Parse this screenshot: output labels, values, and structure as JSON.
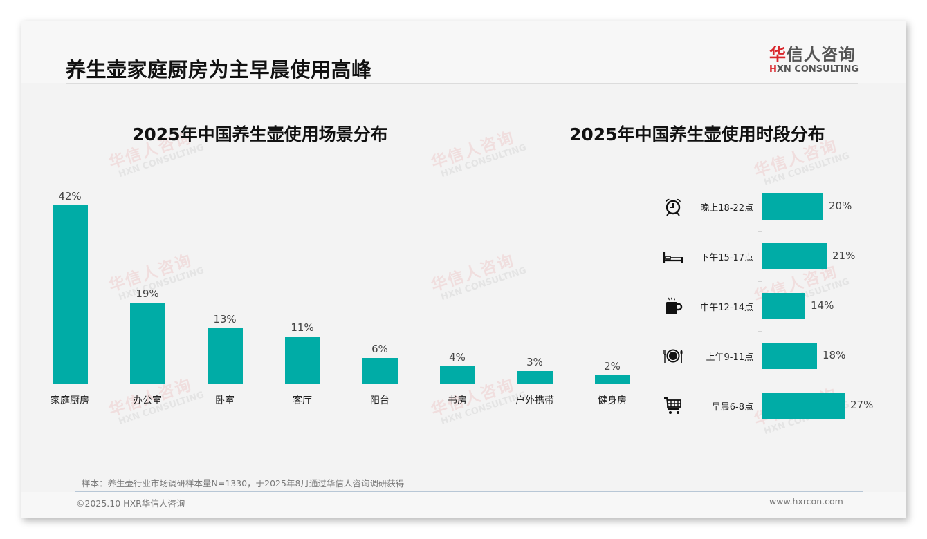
{
  "header": {
    "title": "养生壶家庭厨房为主早晨使用高峰",
    "logo_cn_red": "华",
    "logo_cn_rest": "信人咨询",
    "logo_en_red": "H",
    "logo_en_rest": "XN CONSULTING"
  },
  "watermark": {
    "cn": "华信人咨询",
    "en": "HXN CONSULTING"
  },
  "colors": {
    "bar": "#00aca6",
    "brand_red": "#d9262c",
    "background": "#f3f3f3"
  },
  "chart_data": [
    {
      "type": "bar",
      "title": "2025年中国养生壶使用场景分布",
      "categories": [
        "家庭厨房",
        "办公室",
        "卧室",
        "客厅",
        "阳台",
        "书房",
        "户外携带",
        "健身房"
      ],
      "values": [
        42,
        19,
        13,
        11,
        6,
        4,
        3,
        2
      ],
      "value_labels": [
        "42%",
        "19%",
        "13%",
        "11%",
        "6%",
        "4%",
        "3%",
        "2%"
      ],
      "unit": "%",
      "xlabel": "",
      "ylabel": "",
      "ylim": [
        0,
        42
      ],
      "grid": false,
      "legend": null,
      "orientation": "vertical"
    },
    {
      "type": "bar",
      "title": "2025年中国养生壶使用时段分布",
      "categories": [
        "晚上18-22点",
        "下午15-17点",
        "中午12-14点",
        "上午9-11点",
        "早晨6-8点"
      ],
      "values": [
        20,
        21,
        14,
        18,
        27
      ],
      "value_labels": [
        "20%",
        "21%",
        "14%",
        "18%",
        "27%"
      ],
      "icons": [
        "alarm-clock-icon",
        "bed-icon",
        "coffee-cup-icon",
        "plate-fork-knife-icon",
        "shopping-cart-icon"
      ],
      "unit": "%",
      "xlabel": "",
      "ylabel": "",
      "xlim": [
        0,
        27
      ],
      "grid": false,
      "legend": null,
      "orientation": "horizontal"
    }
  ],
  "footer": {
    "note": "样本：养生壶行业市场调研样本量N=1330，于2025年8月通过华信人咨询调研获得",
    "copyright": "©2025.10 HXR华信人咨询",
    "website": "www.hxrcon.com"
  }
}
